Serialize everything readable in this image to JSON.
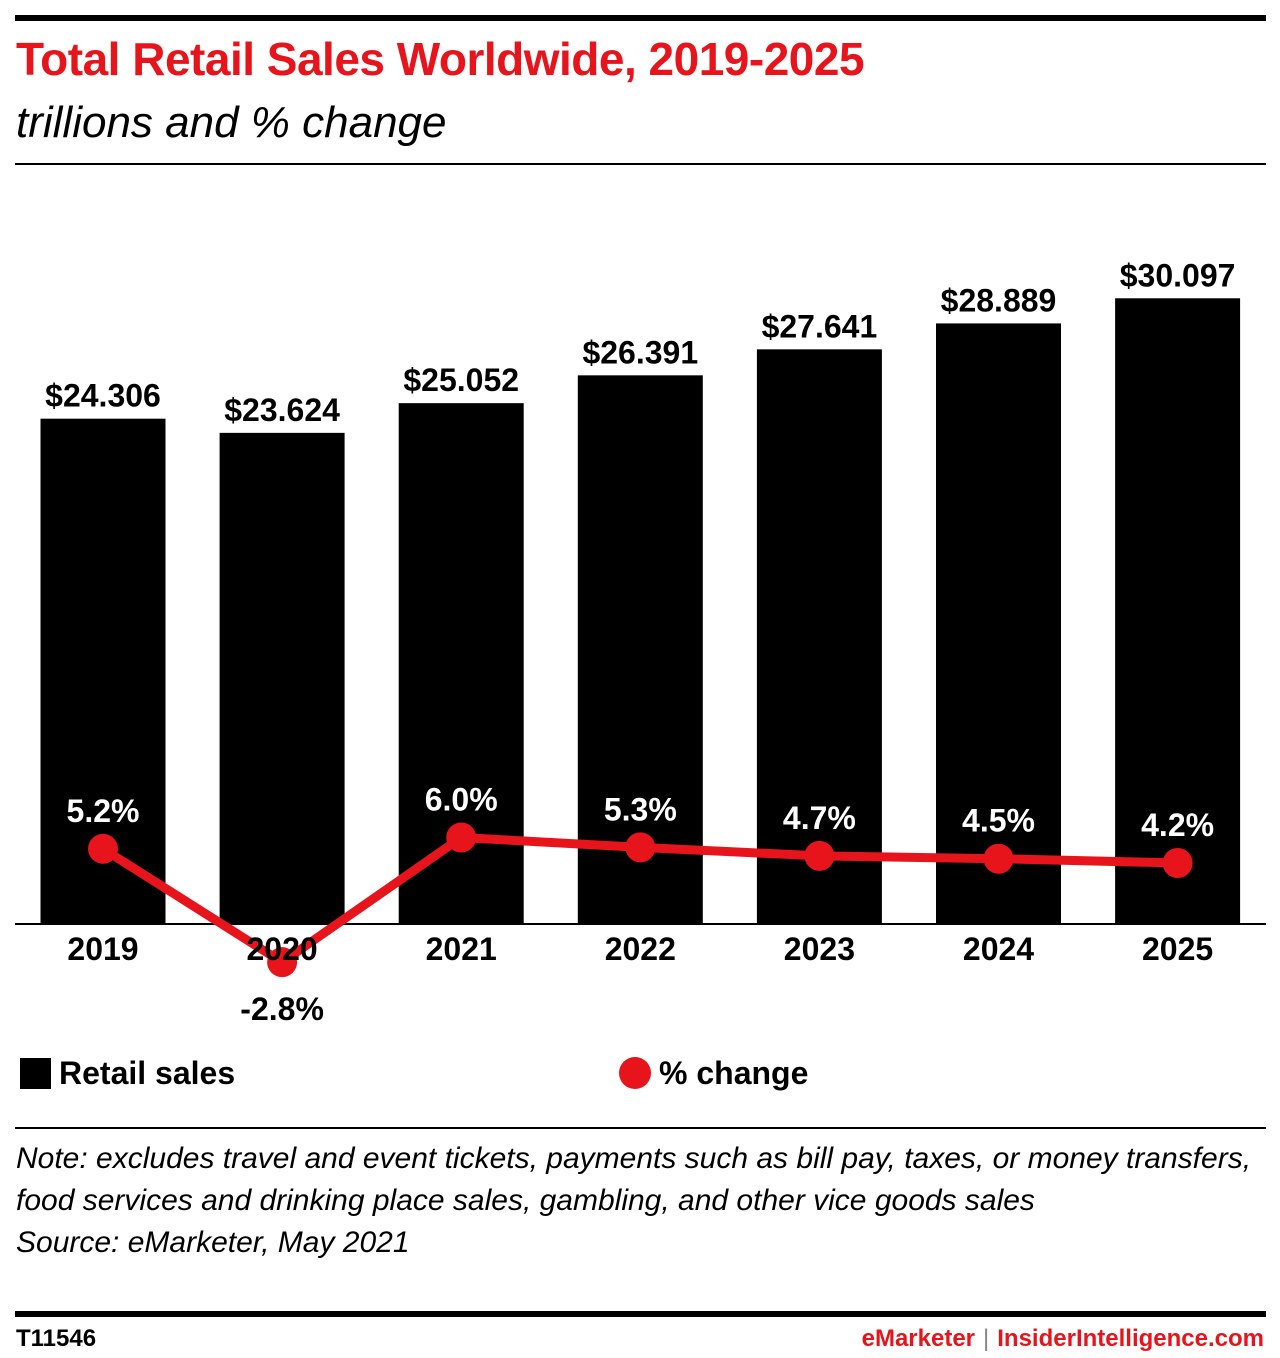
{
  "title": "Total Retail Sales Worldwide, 2019-2025",
  "subtitle": "trillions and % change",
  "chart_data": {
    "type": "bar",
    "categories": [
      "2019",
      "2020",
      "2021",
      "2022",
      "2023",
      "2024",
      "2025"
    ],
    "series": [
      {
        "name": "Retail sales",
        "type": "bar",
        "values": [
          24.306,
          23.624,
          25.052,
          26.391,
          27.641,
          28.889,
          30.097
        ],
        "labels": [
          "$24.306",
          "$23.624",
          "$25.052",
          "$26.391",
          "$27.641",
          "$28.889",
          "$30.097"
        ],
        "color": "#000000"
      },
      {
        "name": "% change",
        "type": "line",
        "values": [
          5.2,
          -2.8,
          6.0,
          5.3,
          4.7,
          4.5,
          4.2
        ],
        "labels": [
          "5.2%",
          "-2.8%",
          "6.0%",
          "5.3%",
          "4.7%",
          "4.5%",
          "4.2%"
        ],
        "color": "#e8141c"
      }
    ],
    "legend_position": "bottom",
    "grid": false
  },
  "legend": {
    "bars_label": "Retail sales",
    "line_label": "% change"
  },
  "note": "Note: excludes travel and event tickets, payments such as bill pay, taxes, or money transfers, food services and drinking place sales, gambling, and other vice goods sales",
  "source": "Source: eMarketer, May 2021",
  "footer": {
    "chart_id": "T11546",
    "brand_emarketer": "eMarketer",
    "brand_separator": "|",
    "brand_insider": "InsiderIntelligence.com"
  },
  "colors": {
    "accent": "#e8141c",
    "bar": "#000000"
  }
}
